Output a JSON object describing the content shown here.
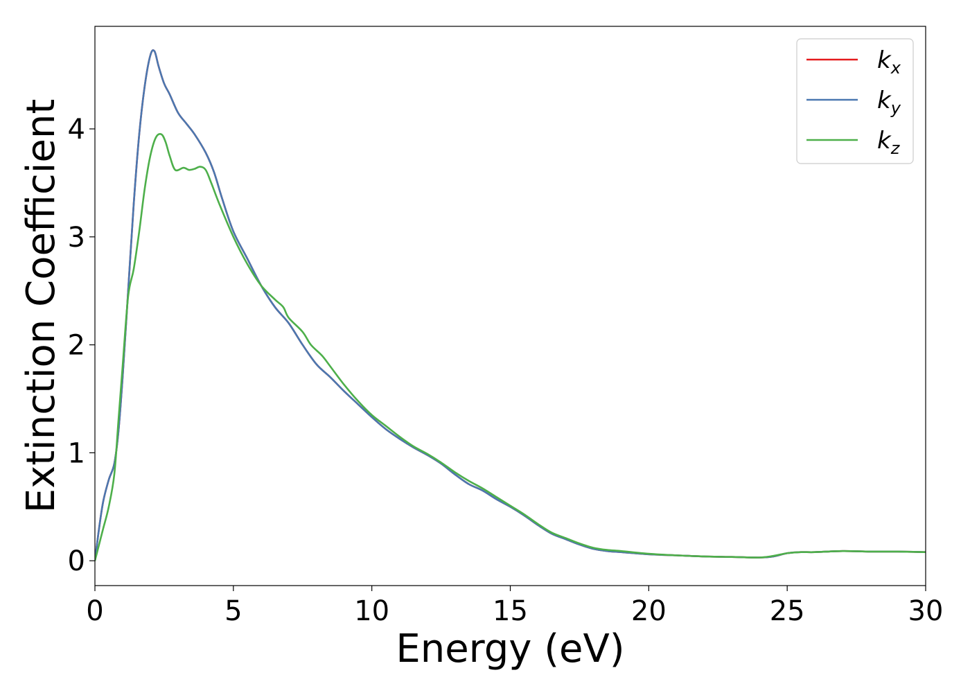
{
  "chart_data": {
    "type": "line",
    "xlabel": "Energy (eV)",
    "ylabel": "Extinction Coefficient",
    "xlim": [
      0,
      30
    ],
    "ylim": [
      -0.23,
      4.95
    ],
    "xticks": [
      0,
      5,
      10,
      15,
      20,
      25,
      30
    ],
    "yticks": [
      0,
      1,
      2,
      3,
      4
    ],
    "grid": false,
    "legend_position": "top-right",
    "series": [
      {
        "name": "k_x",
        "legend_base": "k",
        "legend_sub": "x",
        "color": "#e41a1c",
        "x": [
          0,
          0.15,
          0.3,
          0.5,
          0.7,
          0.85,
          1.0,
          1.2,
          1.4,
          1.6,
          1.8,
          2.0,
          2.15,
          2.3,
          2.5,
          2.7,
          3.0,
          3.3,
          3.6,
          4.0,
          4.3,
          4.6,
          5.0,
          5.5,
          6.0,
          6.5,
          7.0,
          7.5,
          8.0,
          8.5,
          9.0,
          9.5,
          10.0,
          10.5,
          11.0,
          11.5,
          12.0,
          12.5,
          13.0,
          13.5,
          14.0,
          14.5,
          15.0,
          15.5,
          16.0,
          16.5,
          17.0,
          17.5,
          18.0,
          18.5,
          19.0,
          20.0,
          21.0,
          22.0,
          23.0,
          24.0,
          24.5,
          25.0,
          25.5,
          26.0,
          27.0,
          28.0,
          29.0,
          30.0
        ],
        "y": [
          0.0,
          0.3,
          0.55,
          0.75,
          0.9,
          1.2,
          1.7,
          2.5,
          3.3,
          3.95,
          4.4,
          4.68,
          4.72,
          4.58,
          4.42,
          4.32,
          4.15,
          4.05,
          3.95,
          3.78,
          3.6,
          3.35,
          3.05,
          2.8,
          2.55,
          2.35,
          2.2,
          2.0,
          1.82,
          1.7,
          1.57,
          1.45,
          1.33,
          1.22,
          1.13,
          1.05,
          0.98,
          0.9,
          0.8,
          0.71,
          0.65,
          0.57,
          0.5,
          0.42,
          0.33,
          0.25,
          0.2,
          0.15,
          0.11,
          0.09,
          0.08,
          0.06,
          0.05,
          0.04,
          0.035,
          0.03,
          0.04,
          0.07,
          0.08,
          0.08,
          0.09,
          0.085,
          0.085,
          0.08
        ]
      },
      {
        "name": "k_y",
        "legend_base": "k",
        "legend_sub": "y",
        "color": "#4a78b0",
        "x": [
          0,
          0.15,
          0.3,
          0.5,
          0.7,
          0.85,
          1.0,
          1.2,
          1.4,
          1.6,
          1.8,
          2.0,
          2.15,
          2.3,
          2.5,
          2.7,
          3.0,
          3.3,
          3.6,
          4.0,
          4.3,
          4.6,
          5.0,
          5.5,
          6.0,
          6.5,
          7.0,
          7.5,
          8.0,
          8.5,
          9.0,
          9.5,
          10.0,
          10.5,
          11.0,
          11.5,
          12.0,
          12.5,
          13.0,
          13.5,
          14.0,
          14.5,
          15.0,
          15.5,
          16.0,
          16.5,
          17.0,
          17.5,
          18.0,
          18.5,
          19.0,
          20.0,
          21.0,
          22.0,
          23.0,
          24.0,
          24.5,
          25.0,
          25.5,
          26.0,
          27.0,
          28.0,
          29.0,
          30.0
        ],
        "y": [
          0.0,
          0.3,
          0.55,
          0.75,
          0.9,
          1.2,
          1.7,
          2.5,
          3.3,
          3.95,
          4.4,
          4.68,
          4.72,
          4.58,
          4.42,
          4.32,
          4.15,
          4.05,
          3.95,
          3.78,
          3.6,
          3.35,
          3.05,
          2.8,
          2.55,
          2.35,
          2.2,
          2.0,
          1.82,
          1.7,
          1.57,
          1.45,
          1.33,
          1.22,
          1.13,
          1.05,
          0.98,
          0.9,
          0.8,
          0.71,
          0.65,
          0.57,
          0.5,
          0.42,
          0.33,
          0.25,
          0.2,
          0.15,
          0.11,
          0.09,
          0.08,
          0.06,
          0.05,
          0.04,
          0.035,
          0.03,
          0.04,
          0.07,
          0.08,
          0.08,
          0.09,
          0.085,
          0.085,
          0.08
        ]
      },
      {
        "name": "k_z",
        "legend_base": "k",
        "legend_sub": "z",
        "color": "#4daf4a",
        "x": [
          0,
          0.15,
          0.3,
          0.5,
          0.7,
          0.85,
          1.0,
          1.2,
          1.4,
          1.6,
          1.8,
          2.0,
          2.2,
          2.4,
          2.55,
          2.7,
          2.9,
          3.2,
          3.4,
          3.6,
          3.8,
          4.0,
          4.2,
          4.5,
          5.0,
          5.5,
          6.0,
          6.5,
          6.8,
          7.0,
          7.5,
          7.8,
          8.2,
          8.5,
          9.0,
          9.5,
          10.0,
          10.5,
          11.0,
          11.5,
          12.0,
          12.5,
          13.0,
          13.5,
          14.0,
          14.5,
          15.0,
          15.5,
          16.0,
          16.5,
          17.0,
          17.5,
          18.0,
          18.5,
          19.0,
          20.0,
          21.0,
          22.0,
          23.0,
          24.0,
          24.5,
          25.0,
          25.5,
          26.0,
          27.0,
          28.0,
          29.0,
          30.0
        ],
        "y": [
          0.0,
          0.15,
          0.3,
          0.5,
          0.8,
          1.3,
          1.8,
          2.45,
          2.7,
          3.05,
          3.45,
          3.75,
          3.92,
          3.95,
          3.88,
          3.75,
          3.62,
          3.64,
          3.62,
          3.63,
          3.65,
          3.62,
          3.5,
          3.3,
          3.0,
          2.75,
          2.55,
          2.42,
          2.35,
          2.25,
          2.12,
          2.0,
          1.9,
          1.8,
          1.63,
          1.48,
          1.35,
          1.25,
          1.15,
          1.06,
          0.99,
          0.91,
          0.82,
          0.74,
          0.67,
          0.59,
          0.51,
          0.43,
          0.34,
          0.26,
          0.21,
          0.16,
          0.12,
          0.1,
          0.09,
          0.065,
          0.05,
          0.04,
          0.035,
          0.03,
          0.045,
          0.07,
          0.08,
          0.08,
          0.09,
          0.085,
          0.085,
          0.08
        ]
      }
    ]
  }
}
